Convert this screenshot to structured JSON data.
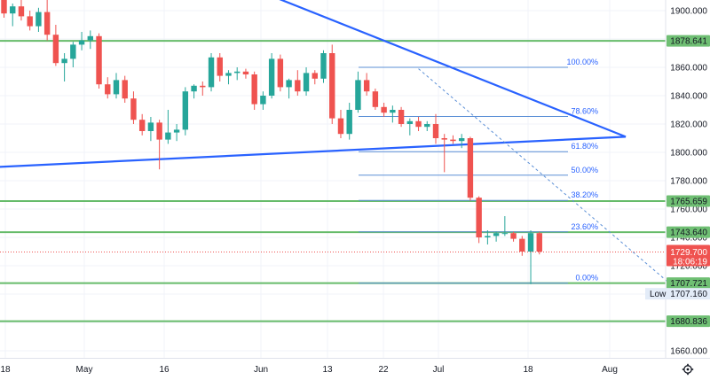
{
  "colors": {
    "up": "#26a69a",
    "down": "#ef5350",
    "level_line": "#66bb6a",
    "trendline": "#2962ff",
    "fib_line": "#5b8fd6",
    "price_tag": "#ef5350",
    "level_tag": "#6fbf73",
    "grid": "#f0f3fa",
    "axis_text": "#131722"
  },
  "price_axis": {
    "min": 1650,
    "max": 1910,
    "ticks": [
      "1900.000",
      "1880.000",
      "1860.000",
      "1840.000",
      "1820.000",
      "1800.000",
      "1780.000",
      "1760.000",
      "1740.000",
      "1720.000",
      "1700.000",
      "1680.000",
      "1660.000"
    ]
  },
  "time_axis": {
    "labels": [
      "18",
      "May",
      "16",
      "Jun",
      "13",
      "22",
      "Jul",
      "18",
      "Aug"
    ]
  },
  "chart_data": {
    "type": "candlestick",
    "x_unit": "trading day index",
    "candles": [
      [
        1908,
        1912,
        1895,
        1898
      ],
      [
        1898,
        1905,
        1889,
        1903
      ],
      [
        1903,
        1915,
        1893,
        1896
      ],
      [
        1896,
        1900,
        1886,
        1889
      ],
      [
        1889,
        1902,
        1885,
        1899
      ],
      [
        1899,
        1911,
        1879,
        1883
      ],
      [
        1883,
        1890,
        1861,
        1863
      ],
      [
        1863,
        1870,
        1850,
        1866
      ],
      [
        1866,
        1878,
        1860,
        1876
      ],
      [
        1876,
        1885,
        1872,
        1879
      ],
      [
        1879,
        1886,
        1873,
        1882
      ],
      [
        1882,
        1884,
        1845,
        1848
      ],
      [
        1848,
        1853,
        1838,
        1841
      ],
      [
        1841,
        1856,
        1838,
        1851
      ],
      [
        1851,
        1854,
        1835,
        1838
      ],
      [
        1838,
        1843,
        1820,
        1823
      ],
      [
        1823,
        1827,
        1812,
        1815
      ],
      [
        1815,
        1825,
        1808,
        1821
      ],
      [
        1821,
        1823,
        1788,
        1809
      ],
      [
        1809,
        1830,
        1806,
        1814
      ],
      [
        1814,
        1820,
        1808,
        1816
      ],
      [
        1816,
        1846,
        1812,
        1843
      ],
      [
        1843,
        1848,
        1838,
        1847
      ],
      [
        1847,
        1850,
        1840,
        1846
      ],
      [
        1846,
        1870,
        1843,
        1867
      ],
      [
        1867,
        1870,
        1850,
        1854
      ],
      [
        1854,
        1858,
        1848,
        1856
      ],
      [
        1856,
        1860,
        1851,
        1857
      ],
      [
        1857,
        1859,
        1852,
        1855
      ],
      [
        1855,
        1857,
        1830,
        1834
      ],
      [
        1834,
        1843,
        1830,
        1840
      ],
      [
        1840,
        1870,
        1838,
        1866
      ],
      [
        1866,
        1869,
        1843,
        1846
      ],
      [
        1846,
        1852,
        1838,
        1851
      ],
      [
        1851,
        1858,
        1840,
        1843
      ],
      [
        1843,
        1860,
        1840,
        1856
      ],
      [
        1856,
        1858,
        1848,
        1852
      ],
      [
        1852,
        1872,
        1849,
        1870
      ],
      [
        1870,
        1876,
        1820,
        1824
      ],
      [
        1824,
        1830,
        1810,
        1813
      ],
      [
        1813,
        1835,
        1809,
        1830
      ],
      [
        1830,
        1857,
        1828,
        1851
      ],
      [
        1851,
        1856,
        1840,
        1843
      ],
      [
        1843,
        1845,
        1830,
        1832
      ],
      [
        1832,
        1835,
        1825,
        1828
      ],
      [
        1828,
        1833,
        1821,
        1830
      ],
      [
        1830,
        1832,
        1818,
        1820
      ],
      [
        1820,
        1824,
        1812,
        1822
      ],
      [
        1822,
        1825,
        1815,
        1818
      ],
      [
        1818,
        1822,
        1815,
        1820
      ],
      [
        1820,
        1827,
        1806,
        1810
      ],
      [
        1810,
        1813,
        1786,
        1809
      ],
      [
        1809,
        1812,
        1806,
        1808
      ],
      [
        1808,
        1813,
        1803,
        1810
      ],
      [
        1810,
        1811,
        1766,
        1768
      ],
      [
        1768,
        1769,
        1736,
        1740
      ],
      [
        1740,
        1745,
        1735,
        1741
      ],
      [
        1741,
        1744,
        1737,
        1743
      ],
      [
        1743,
        1755,
        1741,
        1743
      ],
      [
        1743,
        1744,
        1737,
        1739
      ],
      [
        1739,
        1741,
        1727,
        1730
      ],
      [
        1730,
        1745,
        1707,
        1743
      ],
      [
        1743,
        1744,
        1728,
        1730
      ]
    ],
    "horizontal_levels": [
      1878.641,
      1765.659,
      1743.64,
      1707.721,
      1680.836
    ],
    "current_price": 1729.7,
    "countdown": "18:06:19",
    "low_label": "Low",
    "low_value": "1707.160",
    "fibonacci": [
      {
        "label": "100.00%",
        "price": 1860.0
      },
      {
        "label": "78.60%",
        "price": 1825.3
      },
      {
        "label": "61.80%",
        "price": 1800.5
      },
      {
        "label": "50.00%",
        "price": 1783.9
      },
      {
        "label": "38.20%",
        "price": 1766.1
      },
      {
        "label": "23.60%",
        "price": 1743.9
      },
      {
        "label": "0.00%",
        "price": 1707.7
      }
    ],
    "trendlines": [
      {
        "name": "upper",
        "from": [
          27,
          1920
        ],
        "to": [
          72,
          1811
        ]
      },
      {
        "name": "lower",
        "from": [
          -3,
          1789
        ],
        "to": [
          72,
          1811
        ]
      },
      {
        "name": "projection",
        "from": [
          48,
          1859
        ],
        "to": [
          77,
          1708
        ]
      }
    ]
  }
}
